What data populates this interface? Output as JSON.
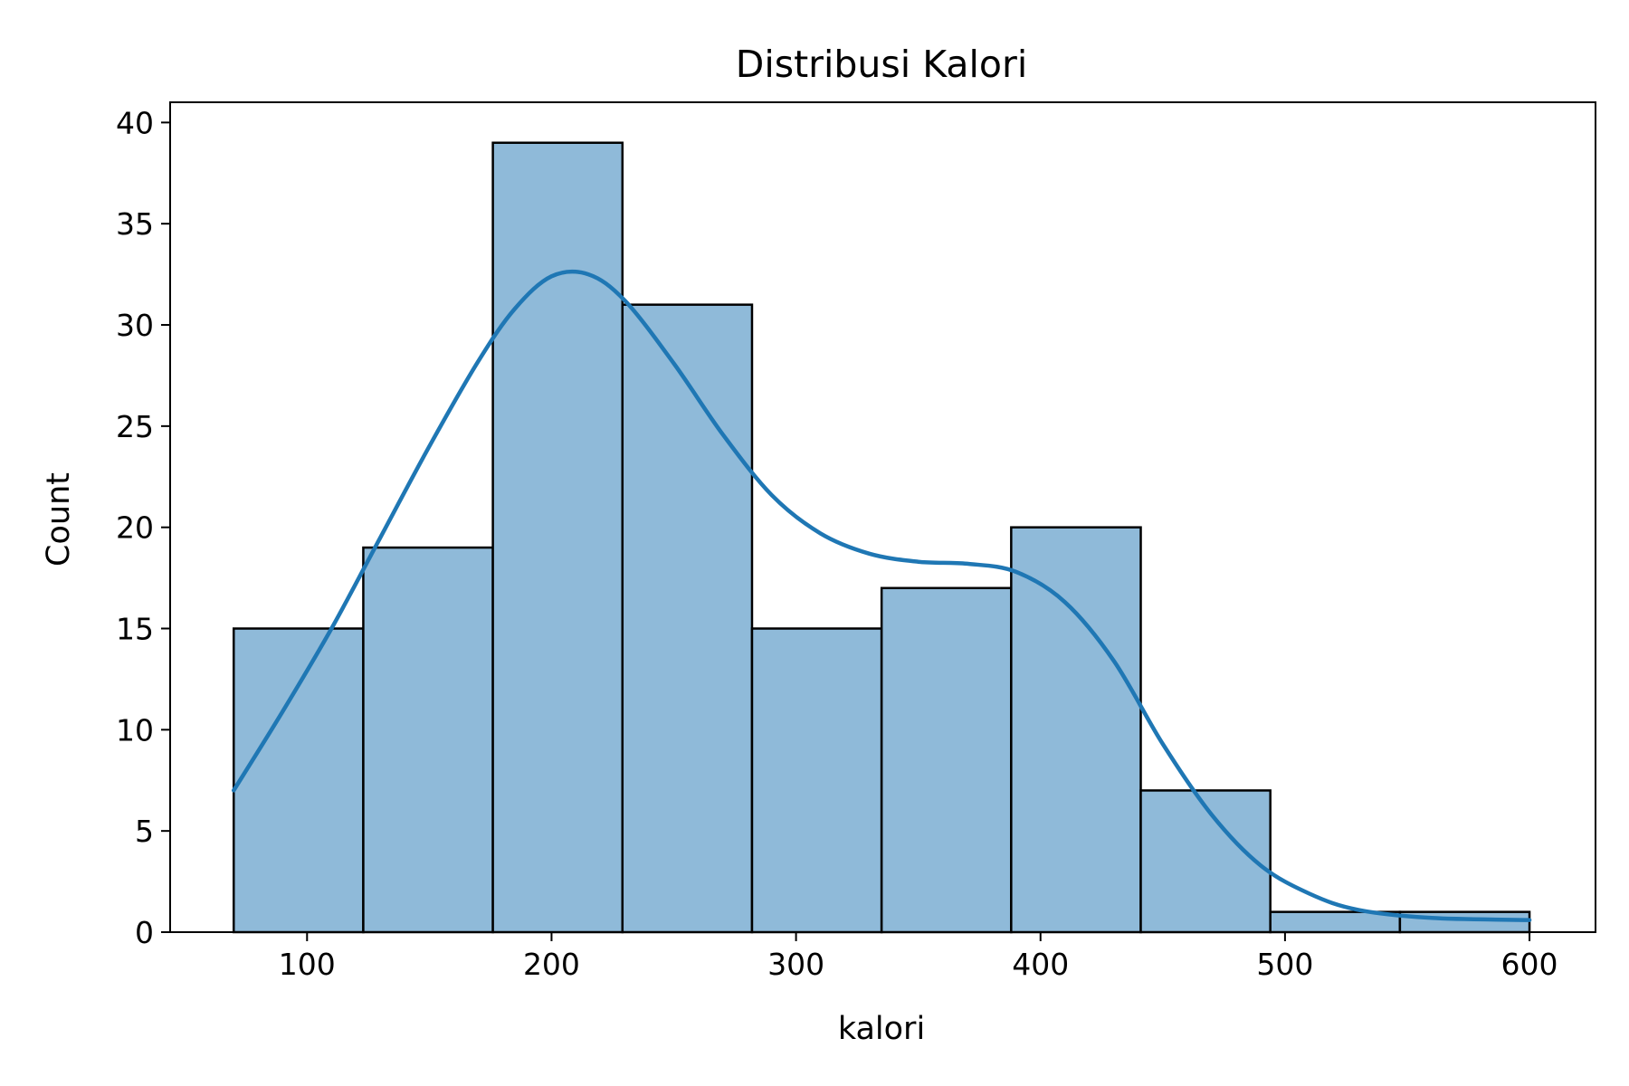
{
  "chart_data": {
    "type": "bar",
    "title": "Distribusi Kalori",
    "xlabel": "kalori",
    "ylabel": "Count",
    "xlim": [
      44,
      627
    ],
    "ylim": [
      0,
      41
    ],
    "xticks": [
      100,
      200,
      300,
      400,
      500,
      600
    ],
    "yticks": [
      0,
      5,
      10,
      15,
      20,
      25,
      30,
      35,
      40
    ],
    "grid": false,
    "legend": "none",
    "bar_color": "#8fbad9",
    "edge_color": "#000000",
    "kde_color": "#1f77b4",
    "bins": [
      {
        "x0": 70,
        "x1": 123,
        "count": 15
      },
      {
        "x0": 123,
        "x1": 176,
        "count": 19
      },
      {
        "x0": 176,
        "x1": 229,
        "count": 39
      },
      {
        "x0": 229,
        "x1": 282,
        "count": 31
      },
      {
        "x0": 282,
        "x1": 335,
        "count": 15
      },
      {
        "x0": 335,
        "x1": 388,
        "count": 17
      },
      {
        "x0": 388,
        "x1": 441,
        "count": 20
      },
      {
        "x0": 441,
        "x1": 494,
        "count": 7
      },
      {
        "x0": 494,
        "x1": 547,
        "count": 1
      },
      {
        "x0": 547,
        "x1": 600,
        "count": 1
      }
    ],
    "kde": {
      "x": [
        70,
        90,
        110,
        130,
        150,
        170,
        185,
        200,
        215,
        230,
        250,
        270,
        290,
        310,
        330,
        350,
        370,
        390,
        410,
        430,
        450,
        470,
        490,
        510,
        530,
        560,
        600
      ],
      "y": [
        7,
        10.9,
        15.0,
        19.5,
        24.0,
        28.2,
        30.8,
        32.4,
        32.5,
        31.2,
        28.1,
        24.6,
        21.6,
        19.7,
        18.7,
        18.3,
        18.2,
        17.8,
        16.3,
        13.4,
        9.3,
        5.8,
        3.3,
        1.9,
        1.1,
        0.7,
        0.6
      ]
    }
  }
}
